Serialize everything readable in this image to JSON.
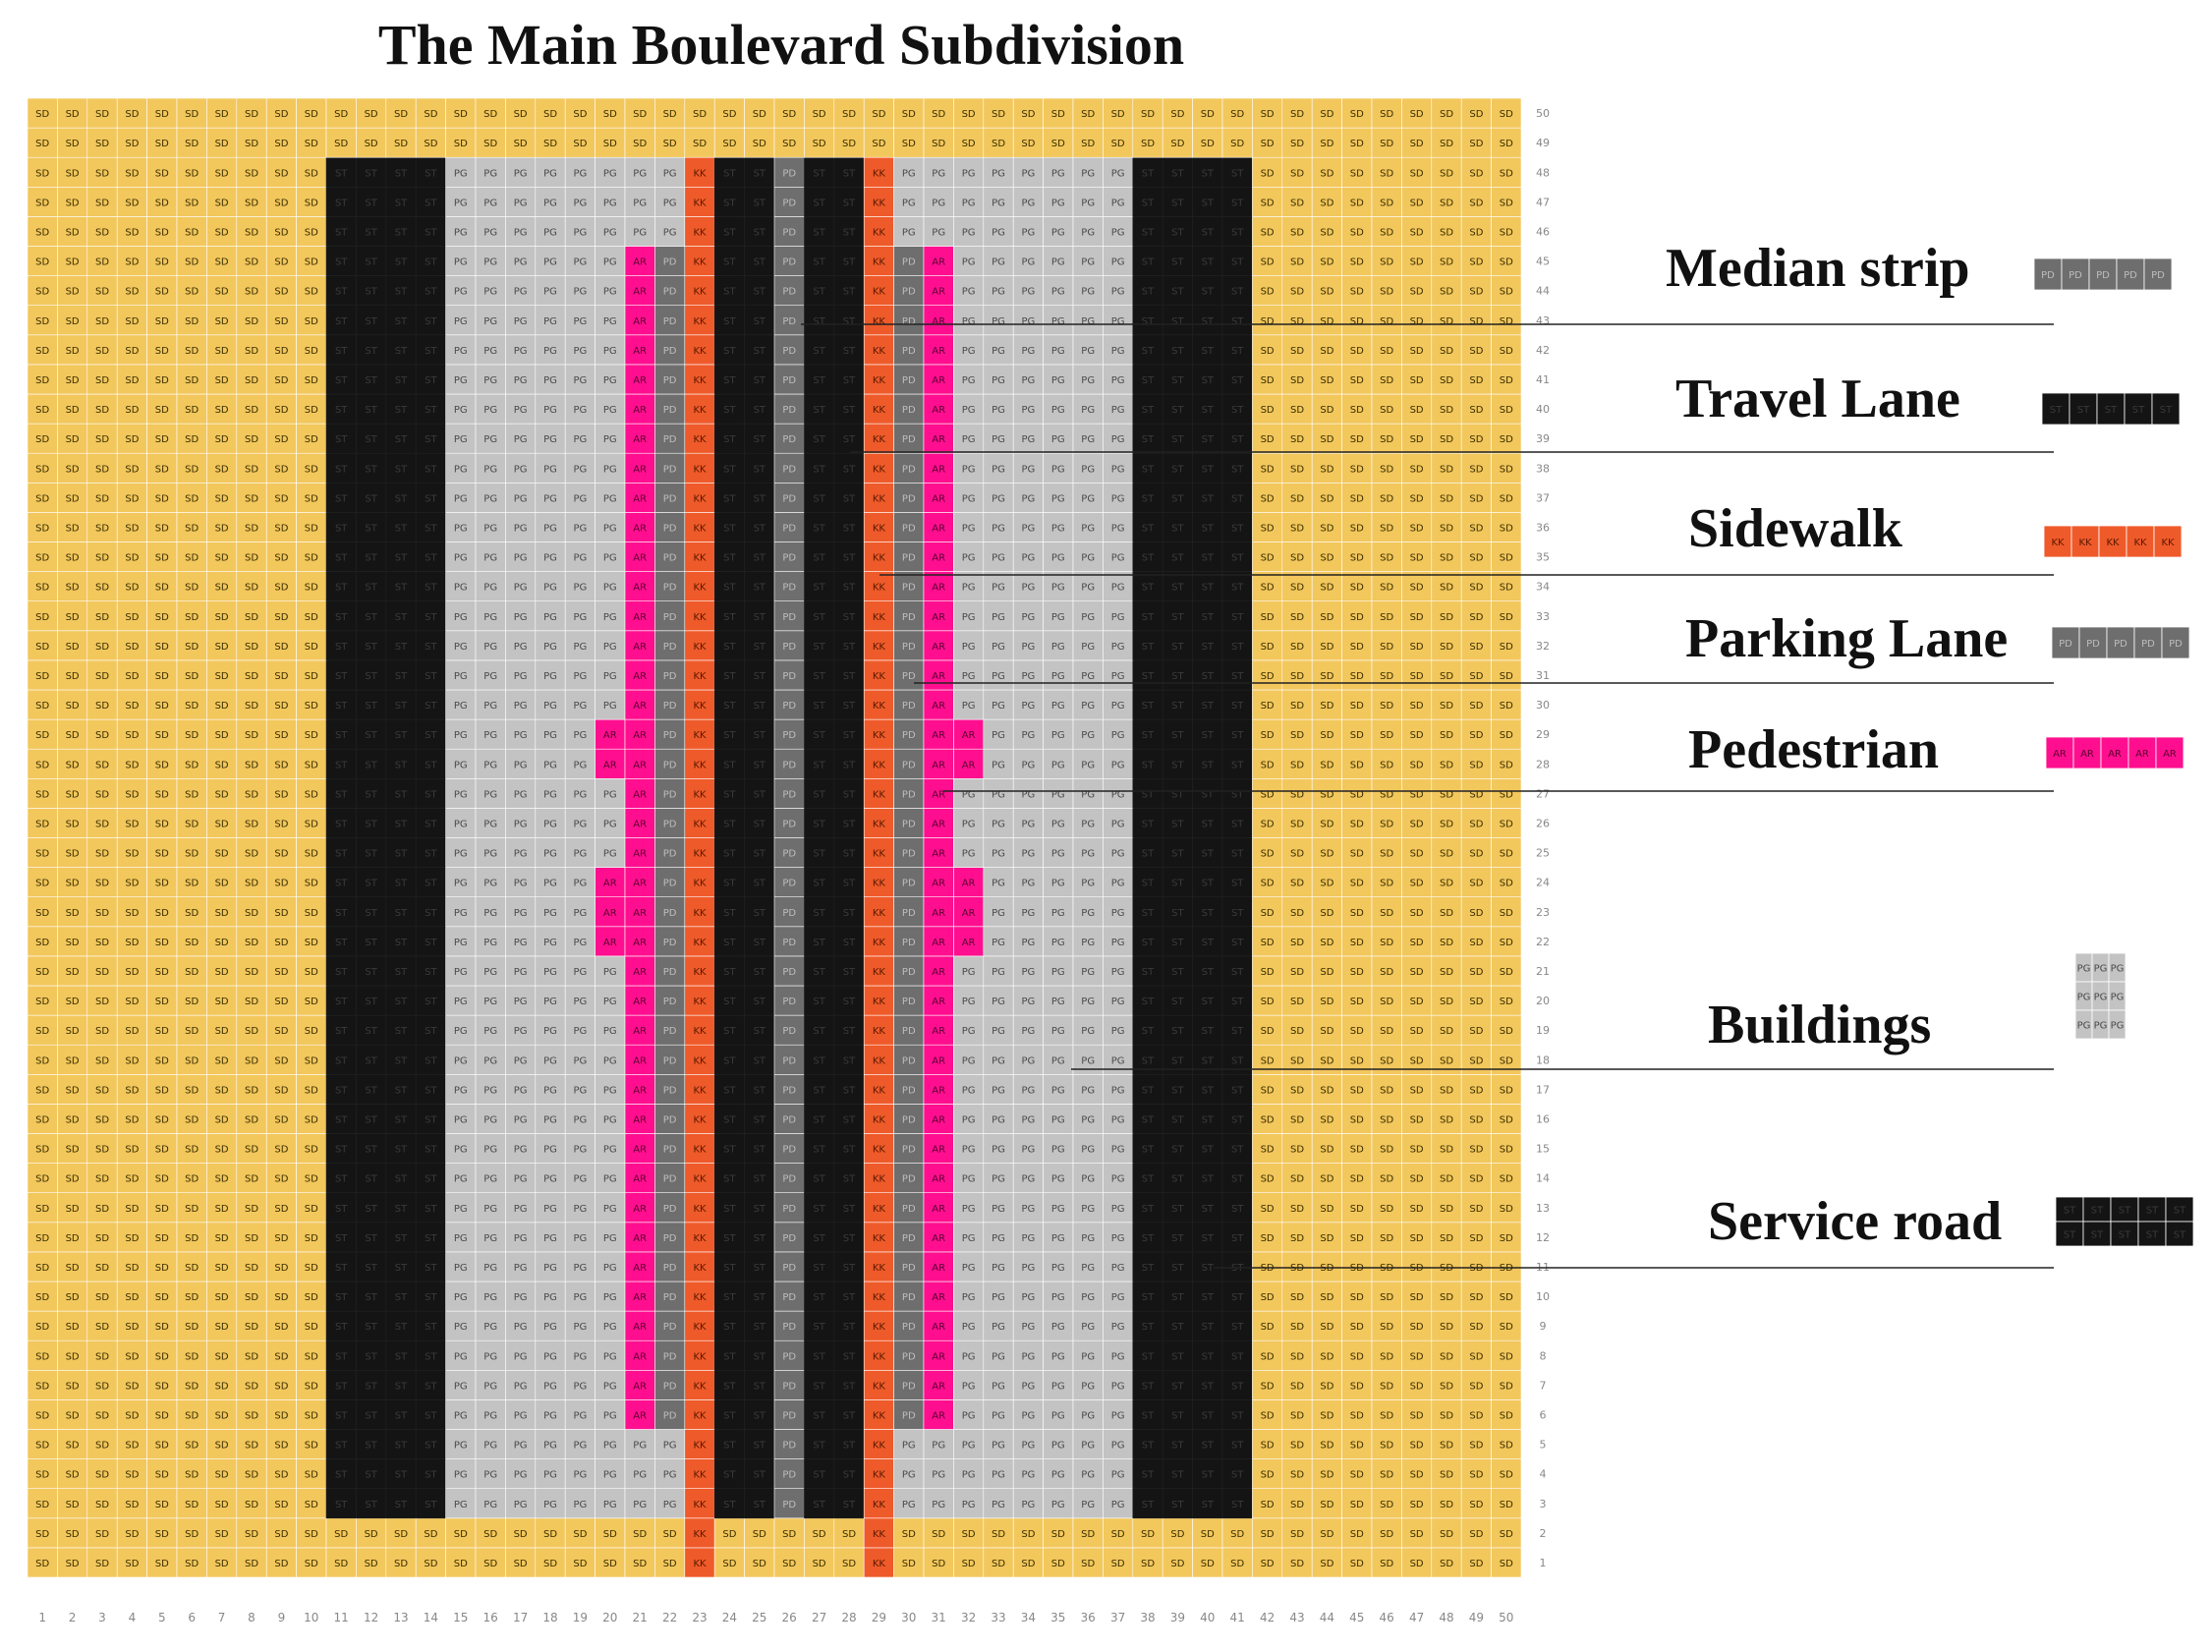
{
  "title": "The Main Boulevard Subdivision",
  "grid": {
    "cols": 50,
    "rows": 50,
    "x_axis_labels": [
      "1",
      "2",
      "3",
      "4",
      "5",
      "6",
      "7",
      "8",
      "9",
      "10",
      "11",
      "12",
      "13",
      "14",
      "15",
      "16",
      "17",
      "18",
      "19",
      "20",
      "21",
      "22",
      "23",
      "24",
      "25",
      "26",
      "27",
      "28",
      "29",
      "30",
      "31",
      "32",
      "33",
      "34",
      "35",
      "36",
      "37",
      "38",
      "39",
      "40",
      "41",
      "42",
      "43",
      "44",
      "45",
      "46",
      "47",
      "48",
      "49",
      "50"
    ],
    "y_axis_labels": [
      "1",
      "2",
      "3",
      "4",
      "5",
      "6",
      "7",
      "8",
      "9",
      "10",
      "11",
      "12",
      "13",
      "14",
      "15",
      "16",
      "17",
      "18",
      "19",
      "20",
      "21",
      "22",
      "23",
      "24",
      "25",
      "26",
      "27",
      "28",
      "29",
      "30",
      "31",
      "32",
      "33",
      "34",
      "35",
      "36",
      "37",
      "38",
      "39",
      "40",
      "41",
      "42",
      "43",
      "44",
      "45",
      "46",
      "47",
      "48",
      "49",
      "50"
    ],
    "codes": {
      "SD": {
        "text": "SD",
        "color": "#f2c75c",
        "text_color": "#3a2e00"
      },
      "ST": {
        "text": "ST",
        "color": "#141414",
        "text_color": "#3a3a3a"
      },
      "PG": {
        "text": "PG",
        "color": "#c3c3c3",
        "text_color": "#4a4a4a"
      },
      "AR": {
        "text": "AR",
        "color": "#ff0f8f",
        "text_color": "#5a0030"
      },
      "PD": {
        "text": "PD",
        "color": "#6e6e6e",
        "text_color": "#bdbdbd"
      },
      "KK": {
        "text": "KK",
        "color": "#ef5a2a",
        "text_color": "#5a1a00"
      }
    },
    "base_columns": [
      "SD",
      "SD",
      "SD",
      "SD",
      "SD",
      "SD",
      "SD",
      "SD",
      "SD",
      "SD",
      "ST",
      "ST",
      "ST",
      "ST",
      "PG",
      "PG",
      "PG",
      "PG",
      "PG",
      "PG",
      "PG",
      "PG",
      "KK",
      "ST",
      "ST",
      "PD",
      "ST",
      "ST",
      "KK",
      "PG",
      "PG",
      "PG",
      "PG",
      "PG",
      "PG",
      "PG",
      "PG",
      "ST",
      "ST",
      "ST",
      "ST",
      "SD",
      "SD",
      "SD",
      "SD",
      "SD",
      "SD",
      "SD",
      "SD",
      "SD"
    ],
    "pedestrian_row_range": [
      6,
      45
    ],
    "pedestrian_left": {
      "AR_col": 21,
      "PD_col": 22
    },
    "pedestrian_right": {
      "PD_col": 30,
      "AR_col": 31
    },
    "pedestrian_widen": [
      {
        "rows": [
          28,
          29
        ],
        "cols": [
          20,
          32
        ]
      },
      {
        "rows": [
          22,
          24
        ],
        "cols": [
          20,
          32
        ]
      }
    ],
    "road_row_range": [
      3,
      48
    ]
  },
  "legend": [
    {
      "label": "Median strip",
      "code": "PD",
      "cols": 5,
      "rows": 1
    },
    {
      "label": "Travel Lane",
      "code": "ST",
      "cols": 5,
      "rows": 1
    },
    {
      "label": "Sidewalk",
      "code": "KK",
      "cols": 5,
      "rows": 1
    },
    {
      "label": "Parking Lane",
      "code": "PD",
      "cols": 5,
      "rows": 1
    },
    {
      "label": "Pedestrian",
      "code": "AR",
      "cols": 5,
      "rows": 1
    },
    {
      "label": "Buildings",
      "code": "PG",
      "cols": 3,
      "rows": 3
    },
    {
      "label": "Service road",
      "code": "ST",
      "cols": 5,
      "rows": 2
    }
  ]
}
